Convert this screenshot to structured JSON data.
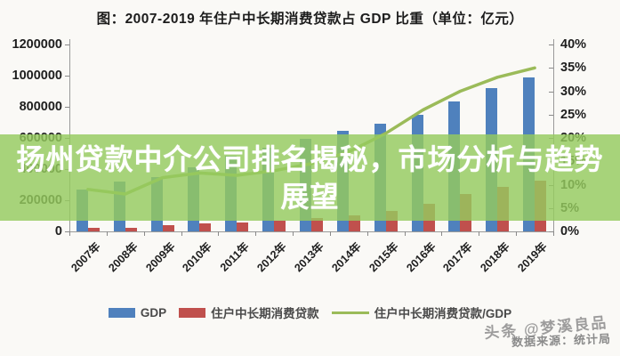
{
  "page": {
    "background": "#faf9f6"
  },
  "chart_data": {
    "type": "bar",
    "combo": "dual-axis bar + line",
    "title": "图：2007-2019 年住户中长期消费贷款占 GDP 比重（单位：亿元）",
    "categories": [
      "2007年",
      "2008年",
      "2009年",
      "2010年",
      "2011年",
      "2012年",
      "2013年",
      "2014年",
      "2015年",
      "2016年",
      "2017年",
      "2018年",
      "2019年"
    ],
    "series": [
      {
        "name": "GDP",
        "type": "bar",
        "axis": "left",
        "color": "#4f81bd",
        "values": [
          270000,
          319000,
          349000,
          412000,
          488000,
          539000,
          593000,
          644000,
          689000,
          746000,
          832000,
          919000,
          991000
        ]
      },
      {
        "name": "住户中长期消费贷款",
        "type": "bar",
        "axis": "left",
        "color": "#c0504d",
        "values": [
          23000,
          25000,
          40000,
          51000,
          58000,
          68000,
          86000,
          103000,
          130000,
          180000,
          240000,
          285000,
          325000
        ]
      },
      {
        "name": "住户中长期消费贷款/GDP",
        "type": "line",
        "axis": "right",
        "color": "#9bbb59",
        "values": [
          9,
          8,
          11.5,
          12.5,
          12,
          13,
          14.5,
          17,
          21,
          26,
          30,
          33,
          35
        ]
      }
    ],
    "left_axis": {
      "min": 0,
      "max": 1200000,
      "ticks": [
        "1200000",
        "1000000",
        "800000",
        "600000",
        "400000",
        "200000",
        "0"
      ]
    },
    "right_axis": {
      "min": 0,
      "max": 40,
      "unit": "%",
      "ticks": [
        "40%",
        "35%",
        "30%",
        "25%",
        "20%",
        "15%",
        "10%",
        "5%",
        "0%"
      ]
    },
    "grid": false,
    "legend_position": "bottom"
  },
  "overlay_banner": {
    "full_text": "扬州贷款中介公司排名揭秘，市场分析与趋势展望",
    "lines": [
      "扬州贷款中介公司排名揭秘，市场分析与趋势",
      "展望"
    ],
    "background_color": "#95ca5e",
    "text_color": "#ffffff"
  },
  "watermark": {
    "text": "头条 @梦溪良品"
  },
  "source": {
    "text": "数据来源：统计局"
  }
}
